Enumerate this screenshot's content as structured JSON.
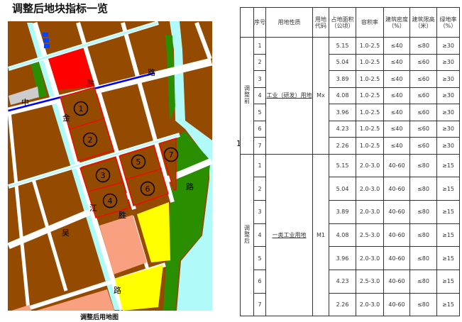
{
  "title": "调整后地块指标一览",
  "map": {
    "caption": "调整后用地图",
    "road_labels": [
      "中",
      "胜",
      "路",
      "金",
      "江",
      "胜",
      "吴",
      "路",
      "路"
    ],
    "plot_numbers": [
      "1",
      "2",
      "3",
      "4",
      "5",
      "6",
      "7"
    ],
    "colors": {
      "industrial": "#944B00",
      "road": "#ffffff",
      "canal": "#B0FAFA",
      "green": "#2A8F00",
      "commercial": "#FF0000",
      "residential": "#F9A080",
      "education": "#FFFF00",
      "gray": "#CCCCCC",
      "highlight_road": "#0000FF",
      "plot_outline": "#FF0000"
    }
  },
  "stray_mark": "1",
  "table": {
    "headers": [
      "",
      "序号",
      "用地性质",
      "用地代码",
      "占地面积（公顷）",
      "容积率",
      "建筑密度（%）",
      "建筑限高（米）",
      "绿地率（%）"
    ],
    "before": {
      "group": "调整前",
      "use": "工业（研发）用地",
      "code": "Mx",
      "rows": [
        {
          "no": "1",
          "area": "5.15",
          "far": "1.0-2.5",
          "density": "≤40",
          "height": "≤80",
          "green": "≥30"
        },
        {
          "no": "2",
          "area": "5.04",
          "far": "1.0-2.5",
          "density": "≤40",
          "height": "≤60",
          "green": "≥30"
        },
        {
          "no": "3",
          "area": "3.89",
          "far": "1.0-2.5",
          "density": "≤40",
          "height": "≤60",
          "green": "≥30"
        },
        {
          "no": "4",
          "area": "4.08",
          "far": "1.0-2.5",
          "density": "≤40",
          "height": "≤60",
          "green": "≥30"
        },
        {
          "no": "5",
          "area": "3.96",
          "far": "1.0-2.5",
          "density": "≤40",
          "height": "≤60",
          "green": "≥30"
        },
        {
          "no": "6",
          "area": "4.23",
          "far": "1.0-2.5",
          "density": "≤40",
          "height": "≤60",
          "green": "≥30"
        },
        {
          "no": "7",
          "area": "2.26",
          "far": "1.0-2.5",
          "density": "≤40",
          "height": "≤60",
          "green": "≥30"
        }
      ]
    },
    "after": {
      "group": "调整后",
      "use": "一类工业用地",
      "code": "M1",
      "rows": [
        {
          "no": "1",
          "area": "5.15",
          "far": "2.0-3.0",
          "density": "40-60",
          "height": "≤80",
          "green": "≥15"
        },
        {
          "no": "2",
          "area": "5.04",
          "far": "2.0-3.0",
          "density": "40-60",
          "height": "≤80",
          "green": "≥15"
        },
        {
          "no": "3",
          "area": "3.89",
          "far": "2.0-3.0",
          "density": "40-60",
          "height": "≤80",
          "green": "≥15"
        },
        {
          "no": "4",
          "area": "4.08",
          "far": "2.5-3.0",
          "density": "40-60",
          "height": "≤80",
          "green": "≥15"
        },
        {
          "no": "5",
          "area": "3.96",
          "far": "2.0-3.0",
          "density": "40-60",
          "height": "≤80",
          "green": "≥15"
        },
        {
          "no": "6",
          "area": "4.23",
          "far": "2.5-3.0",
          "density": "40-60",
          "height": "≤80",
          "green": "≥15"
        },
        {
          "no": "7",
          "area": "2.26",
          "far": "2.0-3.0",
          "density": "40-60",
          "height": "≤80",
          "green": "≥15"
        }
      ]
    }
  }
}
